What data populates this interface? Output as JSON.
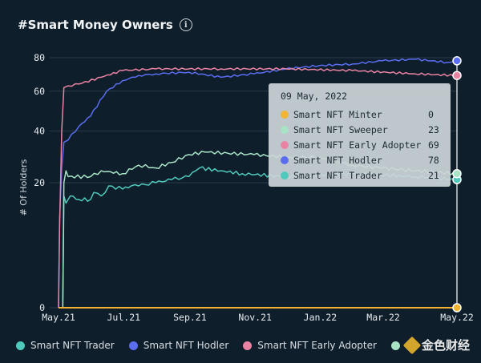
{
  "header": {
    "title": "#Smart Money Owners",
    "info_icon": "info-icon"
  },
  "chart_data": {
    "type": "line",
    "ylabel": "# Of Holders",
    "xlabel": "",
    "x_ticks": [
      "May.21",
      "Jul.21",
      "Sep.21",
      "Nov.21",
      "Jan.22",
      "Mar.22",
      "May.22"
    ],
    "y_ticks": [
      0,
      20,
      40,
      60,
      80
    ],
    "yscale": "sqrt",
    "ylim": [
      0,
      80
    ],
    "xlim": [
      "2021-05-01",
      "2022-05-09"
    ],
    "grid": "horizontal",
    "legend_position": "bottom",
    "series": [
      {
        "name": "Smart NFT Trader",
        "color": "#4fc9bb",
        "points": [
          [
            "2021-05-01",
            0
          ],
          [
            "2021-05-05",
            0
          ],
          [
            "2021-05-06",
            16
          ],
          [
            "2021-05-08",
            14
          ],
          [
            "2021-05-12",
            16
          ],
          [
            "2021-05-20",
            15
          ],
          [
            "2021-05-31",
            15
          ],
          [
            "2021-06-03",
            17
          ],
          [
            "2021-06-10",
            16
          ],
          [
            "2021-06-17",
            19
          ],
          [
            "2021-06-30",
            18
          ],
          [
            "2021-07-08",
            19
          ],
          [
            "2021-07-15",
            19
          ],
          [
            "2021-07-31",
            20
          ],
          [
            "2021-08-15",
            21
          ],
          [
            "2021-08-31",
            22
          ],
          [
            "2021-09-10",
            25
          ],
          [
            "2021-09-30",
            24
          ],
          [
            "2021-10-20",
            23
          ],
          [
            "2021-11-30",
            22
          ],
          [
            "2022-01-31",
            23
          ],
          [
            "2022-03-31",
            22
          ],
          [
            "2022-05-09",
            21
          ]
        ]
      },
      {
        "name": "Smart NFT Hodler",
        "color": "#5a6df0",
        "points": [
          [
            "2021-05-01",
            0
          ],
          [
            "2021-05-02",
            10
          ],
          [
            "2021-05-04",
            25
          ],
          [
            "2021-05-06",
            35
          ],
          [
            "2021-05-10",
            36
          ],
          [
            "2021-05-20",
            42
          ],
          [
            "2021-05-31",
            47
          ],
          [
            "2021-06-15",
            60
          ],
          [
            "2021-06-30",
            66
          ],
          [
            "2021-07-15",
            69
          ],
          [
            "2021-07-31",
            70
          ],
          [
            "2021-08-31",
            71
          ],
          [
            "2021-09-30",
            68
          ],
          [
            "2021-10-31",
            70
          ],
          [
            "2021-11-30",
            73
          ],
          [
            "2021-12-31",
            75
          ],
          [
            "2022-01-31",
            76
          ],
          [
            "2022-02-28",
            78
          ],
          [
            "2022-03-31",
            79
          ],
          [
            "2022-04-30",
            77
          ],
          [
            "2022-05-09",
            78
          ]
        ]
      },
      {
        "name": "Smart NFT Early Adopter",
        "color": "#e983a4",
        "points": [
          [
            "2021-05-01",
            0
          ],
          [
            "2021-05-02",
            8
          ],
          [
            "2021-05-04",
            40
          ],
          [
            "2021-05-06",
            62
          ],
          [
            "2021-05-10",
            63
          ],
          [
            "2021-05-20",
            64
          ],
          [
            "2021-06-10",
            68
          ],
          [
            "2021-06-30",
            72
          ],
          [
            "2021-07-31",
            73
          ],
          [
            "2021-09-30",
            73
          ],
          [
            "2021-11-30",
            73
          ],
          [
            "2022-01-31",
            72
          ],
          [
            "2022-03-31",
            70
          ],
          [
            "2022-05-09",
            69
          ]
        ]
      },
      {
        "name": "Smart NFT Sweeper",
        "color": "#a8e3c6",
        "points": [
          [
            "2021-05-01",
            0
          ],
          [
            "2021-05-05",
            0
          ],
          [
            "2021-05-06",
            20
          ],
          [
            "2021-05-08",
            24
          ],
          [
            "2021-05-10",
            22
          ],
          [
            "2021-05-31",
            22
          ],
          [
            "2021-06-10",
            24
          ],
          [
            "2021-06-30",
            23
          ],
          [
            "2021-07-15",
            26
          ],
          [
            "2021-07-31",
            25
          ],
          [
            "2021-08-15",
            27
          ],
          [
            "2021-08-31",
            30
          ],
          [
            "2021-09-15",
            31
          ],
          [
            "2021-10-31",
            30
          ],
          [
            "2021-11-30",
            29
          ],
          [
            "2021-12-31",
            29
          ],
          [
            "2022-01-31",
            26
          ],
          [
            "2022-02-28",
            25
          ],
          [
            "2022-03-31",
            24
          ],
          [
            "2022-05-09",
            23
          ]
        ]
      },
      {
        "name": "Smart NFT Minter",
        "color": "#f2b431",
        "points": [
          [
            "2021-05-01",
            0
          ],
          [
            "2022-05-09",
            0
          ]
        ]
      }
    ]
  },
  "tooltip": {
    "date": "09 May, 2022",
    "rows": [
      {
        "name": "Smart NFT Minter",
        "value": "0",
        "color": "#f2b431"
      },
      {
        "name": "Smart NFT Sweeper",
        "value": "23",
        "color": "#a8e3c6"
      },
      {
        "name": "Smart NFT Early Adopter",
        "value": "69",
        "color": "#e983a4"
      },
      {
        "name": "Smart NFT Hodler",
        "value": "78",
        "color": "#5a6df0"
      },
      {
        "name": "Smart NFT Trader",
        "value": "21",
        "color": "#4fc9bb"
      }
    ]
  },
  "legend": [
    {
      "name": "Smart NFT Trader",
      "color": "#4fc9bb"
    },
    {
      "name": "Smart NFT Hodler",
      "color": "#5a6df0"
    },
    {
      "name": "Smart NFT Early Adopter",
      "color": "#e983a4"
    },
    {
      "name": "",
      "color": "#a8e3c6"
    }
  ],
  "watermark": {
    "text": "金色财经",
    "logo": "jinse-logo-icon"
  }
}
